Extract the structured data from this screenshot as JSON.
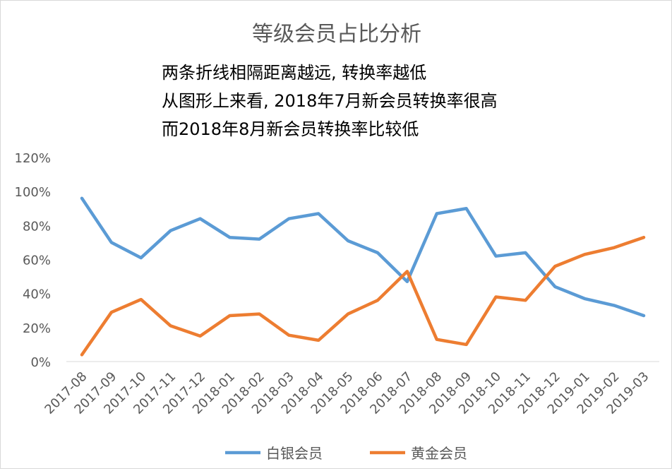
{
  "chart_data": {
    "type": "line",
    "title": "等级会员占比分析",
    "annotations": [
      "两条折线相隔距离越远, 转换率越低",
      "从图形上来看, 2018年7月新会员转换率很高",
      "而2018年8月新会员转换率比较低"
    ],
    "categories": [
      "2017-08",
      "2017-09",
      "2017-10",
      "2017-11",
      "2017-12",
      "2018-01",
      "2018-02",
      "2018-03",
      "2018-04",
      "2018-05",
      "2018-06",
      "2018-07",
      "2018-08",
      "2018-09",
      "2018-10",
      "2018-11",
      "2018-12",
      "2019-01",
      "2019-02",
      "2019-03"
    ],
    "y_ticks": [
      "0%",
      "20%",
      "40%",
      "60%",
      "80%",
      "100%",
      "120%"
    ],
    "ylim": [
      0,
      120
    ],
    "grid": false,
    "legend_position": "bottom",
    "series": [
      {
        "name": "白银会员",
        "color": "#5b9bd5",
        "values": [
          96,
          70,
          61,
          77,
          84,
          73,
          72,
          84,
          87,
          71,
          64,
          47,
          87,
          90,
          62,
          64,
          44,
          37,
          33,
          27
        ]
      },
      {
        "name": "黄金会员",
        "color": "#ed7d31",
        "values": [
          4,
          29,
          36.5,
          21,
          15,
          27,
          28,
          15.5,
          12.5,
          28,
          36,
          53,
          13,
          10,
          38,
          36,
          56,
          63,
          67,
          73
        ]
      }
    ]
  }
}
